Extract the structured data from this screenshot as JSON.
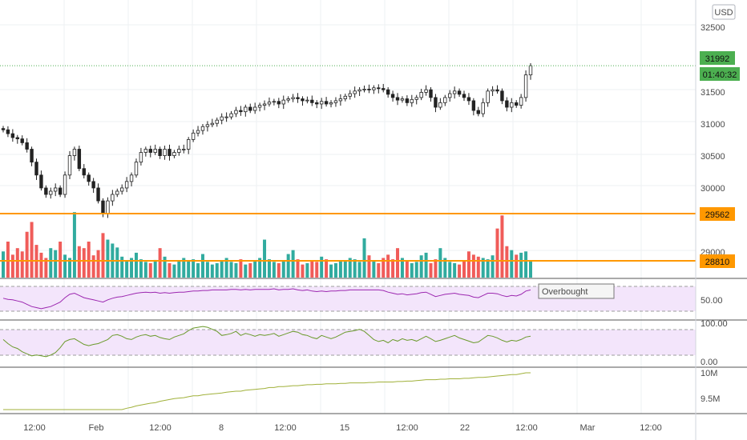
{
  "currency": "USD",
  "colors": {
    "up": "#26a69a",
    "down": "#ef5350",
    "candle": "#222222",
    "orange": "#ff9800",
    "price_tag": "#4caf50",
    "rsi_line": "#9c27b0",
    "stoch_line": "#6a9a2b",
    "obv_line": "#a0b13a",
    "band_fill": "#f3e5fb",
    "grid": "#eef0f3"
  },
  "price_axis": {
    "ticks": [
      "32500",
      "31500",
      "31000",
      "30500",
      "30000",
      "29000"
    ],
    "current_price": "31992",
    "countdown": "01:40:32",
    "levels": [
      "29562",
      "28810"
    ]
  },
  "time_axis": {
    "labels": [
      "12:00",
      "Feb",
      "12:00",
      "8",
      "12:00",
      "15",
      "12:00",
      "22",
      "12:00",
      "Mar",
      "12:00"
    ]
  },
  "rsi": {
    "label": "Overbought",
    "tick": "50.00"
  },
  "stoch": {
    "ticks": [
      "100.00",
      "0.00"
    ]
  },
  "obv": {
    "ticks": [
      "10M",
      "9.5M"
    ]
  },
  "chart_data": {
    "type": "candlestick",
    "currency": "USD",
    "x_labels": [
      "12:00",
      "Feb",
      "12:00",
      "8",
      "12:00",
      "15",
      "12:00",
      "22",
      "12:00",
      "Mar",
      "12:00"
    ],
    "close": [
      31000,
      30940,
      30880,
      30860,
      30800,
      30700,
      30500,
      30300,
      30100,
      30000,
      30050,
      30100,
      30000,
      30300,
      30600,
      30700,
      30400,
      30300,
      30200,
      30100,
      29900,
      29700,
      29900,
      30000,
      30050,
      30100,
      30200,
      30300,
      30500,
      30650,
      30700,
      30650,
      30700,
      30600,
      30700,
      30600,
      30650,
      30700,
      30700,
      30850,
      30950,
      30990,
      31050,
      31080,
      31100,
      31150,
      31200,
      31200,
      31250,
      31300,
      31280,
      31350,
      31300,
      31350,
      31380,
      31400,
      31430,
      31440,
      31400,
      31460,
      31480,
      31500,
      31480,
      31450,
      31460,
      31420,
      31400,
      31440,
      31400,
      31420,
      31450,
      31480,
      31520,
      31560,
      31600,
      31620,
      31630,
      31620,
      31650,
      31640,
      31620,
      31550,
      31500,
      31460,
      31480,
      31420,
      31470,
      31500,
      31580,
      31620,
      31500,
      31350,
      31420,
      31500,
      31560,
      31600,
      31550,
      31500,
      31450,
      31300,
      31250,
      31420,
      31600,
      31620,
      31600,
      31450,
      31350,
      31420,
      31380,
      31500,
      31850,
      31992
    ],
    "volume": [
      40,
      55,
      35,
      45,
      40,
      70,
      85,
      50,
      38,
      30,
      45,
      42,
      55,
      35,
      30,
      100,
      48,
      45,
      55,
      34,
      42,
      68,
      58,
      52,
      46,
      32,
      25,
      30,
      38,
      28,
      24,
      22,
      27,
      45,
      32,
      22,
      20,
      25,
      30,
      26,
      28,
      22,
      36,
      24,
      20,
      22,
      26,
      30,
      24,
      22,
      28,
      20,
      22,
      26,
      30,
      58,
      28,
      24,
      22,
      26,
      36,
      42,
      28,
      20,
      22,
      26,
      24,
      32,
      28,
      20,
      22,
      25,
      26,
      30,
      28,
      24,
      60,
      34,
      26,
      22,
      30,
      35,
      28,
      45,
      30,
      26,
      22,
      24,
      34,
      38,
      22,
      28,
      45,
      30,
      24,
      22,
      20,
      26,
      40,
      35,
      32,
      30,
      28,
      34,
      75,
      95,
      48,
      42,
      35,
      38,
      40,
      26
    ],
    "rsi": [
      55,
      53,
      52,
      50,
      48,
      44,
      40,
      38,
      36,
      38,
      40,
      44,
      48,
      56,
      62,
      64,
      60,
      56,
      54,
      52,
      50,
      48,
      52,
      55,
      57,
      58,
      60,
      62,
      64,
      65,
      66,
      65,
      66,
      64,
      65,
      64,
      65,
      66,
      66,
      67,
      68,
      68,
      69,
      69,
      70,
      70,
      70,
      70,
      71,
      71,
      70,
      71,
      70,
      71,
      71,
      71,
      71,
      72,
      70,
      71,
      71,
      72,
      70,
      69,
      70,
      68,
      67,
      68,
      67,
      68,
      68,
      69,
      69,
      70,
      70,
      70,
      70,
      70,
      70,
      70,
      69,
      66,
      64,
      62,
      63,
      61,
      62,
      63,
      65,
      66,
      62,
      58,
      60,
      62,
      63,
      64,
      62,
      61,
      60,
      57,
      56,
      60,
      64,
      64,
      63,
      60,
      58,
      60,
      59,
      62,
      68,
      70
    ],
    "stoch": [
      60,
      50,
      42,
      38,
      30,
      25,
      20,
      22,
      20,
      18,
      22,
      28,
      40,
      55,
      60,
      62,
      55,
      48,
      45,
      48,
      50,
      55,
      60,
      70,
      72,
      68,
      62,
      60,
      66,
      70,
      72,
      68,
      70,
      65,
      62,
      60,
      66,
      70,
      74,
      82,
      88,
      90,
      92,
      90,
      85,
      80,
      70,
      72,
      75,
      80,
      70,
      75,
      72,
      68,
      72,
      70,
      72,
      75,
      68,
      72,
      76,
      80,
      78,
      72,
      70,
      65,
      62,
      70,
      66,
      62,
      66,
      72,
      78,
      80,
      82,
      85,
      80,
      70,
      60,
      55,
      58,
      52,
      60,
      56,
      62,
      58,
      60,
      56,
      62,
      68,
      62,
      55,
      58,
      62,
      66,
      70,
      64,
      60,
      56,
      52,
      54,
      62,
      70,
      68,
      64,
      58,
      54,
      58,
      56,
      60,
      66,
      68
    ],
    "obv": [
      9.2,
      9.18,
      9.15,
      9.17,
      9.12,
      9.1,
      9.08,
      9.06,
      9.05,
      9.05,
      9.12,
      9.1,
      9.08,
      9.08,
      9.09,
      9.12,
      9.15,
      9.16,
      9.18,
      9.19,
      9.2,
      9.2,
      9.22,
      9.24,
      9.28,
      9.3,
      9.33,
      9.35,
      9.38,
      9.4,
      9.42,
      9.44,
      9.45,
      9.48,
      9.5,
      9.52,
      9.54,
      9.55,
      9.56,
      9.58,
      9.6,
      9.6,
      9.62,
      9.63,
      9.64,
      9.65,
      9.66,
      9.68,
      9.69,
      9.7,
      9.7,
      9.72,
      9.73,
      9.74,
      9.75,
      9.76,
      9.78,
      9.78,
      9.8,
      9.8,
      9.81,
      9.82,
      9.82,
      9.83,
      9.84,
      9.84,
      9.85,
      9.85,
      9.86,
      9.86,
      9.86,
      9.87,
      9.87,
      9.88,
      9.88,
      9.88,
      9.88,
      9.89,
      9.89,
      9.9,
      9.9,
      9.9,
      9.9,
      9.91,
      9.91,
      9.92,
      9.92,
      9.93,
      9.94,
      9.95,
      9.95,
      9.95,
      9.96,
      9.96,
      9.97,
      9.97,
      9.97,
      9.98,
      9.98,
      9.99,
      10.0,
      10.0,
      10.01,
      10.02,
      10.03,
      10.04,
      10.05,
      10.06,
      10.06,
      10.08,
      10.12,
      10.15
    ],
    "price_range": [
      28700,
      32700
    ],
    "volume_range": [
      0,
      110
    ],
    "rsi_range": [
      20,
      85
    ],
    "stoch_range": [
      0,
      100
    ],
    "obv_range": [
      9.3,
      10.1
    ],
    "horizontal_levels": [
      29562,
      28810
    ]
  }
}
